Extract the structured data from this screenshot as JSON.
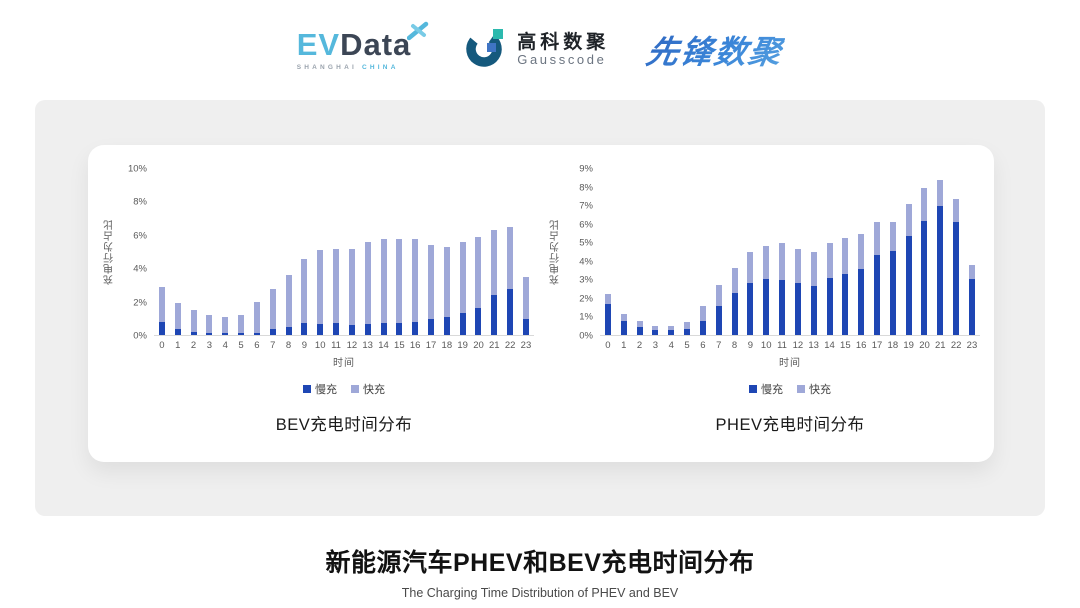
{
  "header": {
    "evdata": {
      "ev": "EV",
      "data": "Data",
      "sub_left": "SHANGHAI",
      "sub_right": "CHINA"
    },
    "gausscode": {
      "cn": "高科数聚",
      "en": "Gausscode"
    },
    "pioneer": {
      "text": "先锋数聚"
    }
  },
  "colors": {
    "slow_charge": "#1e46b4",
    "fast_charge": "#9fa8d8",
    "panel_bg": "#efefef",
    "evdata_blue": "#55b8dc",
    "evdata_dark": "#3c4655",
    "gausscode_dark": "#15597d",
    "gausscode_teal": "#2cb9ae",
    "pioneer_blue": "#3a7ed2",
    "axis_text": "#595959"
  },
  "chart_data": [
    {
      "type": "bar",
      "stacked": true,
      "title": "BEV充电时间分布",
      "xlabel": "时间",
      "ylabel": "充电行为占比",
      "ylim": [
        0,
        10
      ],
      "ystep": 2,
      "grid": false,
      "legend_position": "bottom",
      "unit": "%",
      "categories": [
        0,
        1,
        2,
        3,
        4,
        5,
        6,
        7,
        8,
        9,
        10,
        11,
        12,
        13,
        14,
        15,
        16,
        17,
        18,
        19,
        20,
        21,
        22,
        23
      ],
      "series": [
        {
          "name": "慢充",
          "values": [
            0.8,
            0.35,
            0.2,
            0.1,
            0.1,
            0.1,
            0.15,
            0.35,
            0.5,
            0.7,
            0.65,
            0.7,
            0.6,
            0.65,
            0.7,
            0.7,
            0.8,
            0.95,
            1.1,
            1.3,
            1.6,
            2.4,
            2.75,
            0.95
          ]
        },
        {
          "name": "快充",
          "values": [
            2.1,
            1.55,
            1.3,
            1.1,
            1.0,
            1.1,
            1.85,
            2.45,
            3.1,
            3.9,
            4.45,
            4.5,
            4.6,
            4.95,
            5.1,
            5.1,
            5.0,
            4.45,
            4.2,
            4.3,
            4.3,
            3.9,
            3.75,
            2.55
          ]
        }
      ]
    },
    {
      "type": "bar",
      "stacked": true,
      "title": "PHEV充电时间分布",
      "xlabel": "时间",
      "ylabel": "充电行为占比",
      "ylim": [
        0,
        9
      ],
      "ystep": 1,
      "grid": false,
      "legend_position": "bottom",
      "unit": "%",
      "categories": [
        0,
        1,
        2,
        3,
        4,
        5,
        6,
        7,
        8,
        9,
        10,
        11,
        12,
        13,
        14,
        15,
        16,
        17,
        18,
        19,
        20,
        21,
        22,
        23
      ],
      "series": [
        {
          "name": "慢充",
          "values": [
            1.7,
            0.75,
            0.45,
            0.25,
            0.25,
            0.3,
            0.75,
            1.6,
            2.3,
            2.8,
            3.05,
            3.0,
            2.8,
            2.65,
            3.1,
            3.3,
            3.6,
            4.35,
            4.55,
            5.35,
            6.2,
            7.0,
            6.15,
            3.05
          ]
        },
        {
          "name": "快充",
          "values": [
            0.5,
            0.4,
            0.3,
            0.25,
            0.25,
            0.4,
            0.85,
            1.1,
            1.35,
            1.7,
            1.75,
            2.0,
            1.85,
            1.85,
            1.9,
            1.95,
            1.9,
            1.8,
            1.6,
            1.75,
            1.75,
            1.4,
            1.2,
            0.75
          ]
        }
      ]
    }
  ],
  "footer": {
    "title": "新能源汽车PHEV和BEV充电时间分布",
    "subtitle": "The Charging Time Distribution of PHEV and BEV"
  }
}
